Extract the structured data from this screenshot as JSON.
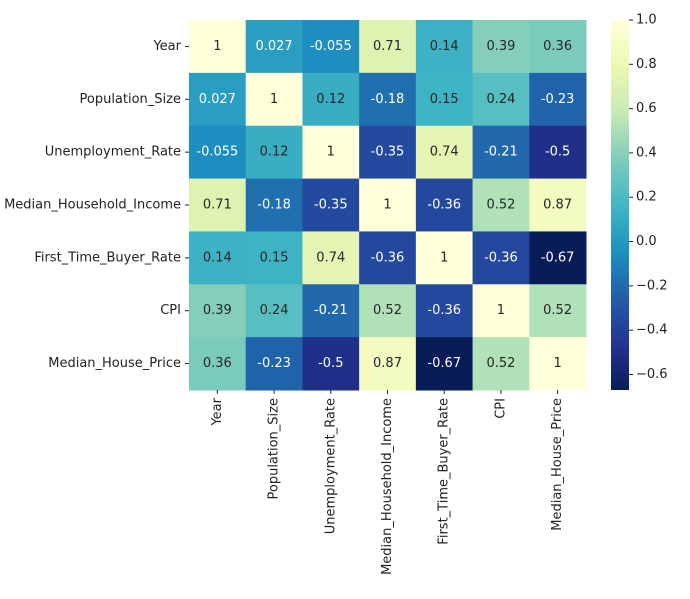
{
  "chart_data": {
    "type": "heatmap",
    "title": "",
    "xlabel": "",
    "ylabel": "",
    "x_labels": [
      "Year",
      "Population_Size",
      "Unemployment_Rate",
      "Median_Household_Income",
      "First_Time_Buyer_Rate",
      "CPI",
      "Median_House_Price"
    ],
    "y_labels": [
      "Year",
      "Population_Size",
      "Unemployment_Rate",
      "Median_Household_Income",
      "First_Time_Buyer_Rate",
      "CPI",
      "Median_House_Price"
    ],
    "values": [
      [
        1,
        0.027,
        -0.055,
        0.71,
        0.14,
        0.39,
        0.36
      ],
      [
        0.027,
        1,
        0.12,
        -0.18,
        0.15,
        0.24,
        -0.23
      ],
      [
        -0.055,
        0.12,
        1,
        -0.35,
        0.74,
        -0.21,
        -0.5
      ],
      [
        0.71,
        -0.18,
        -0.35,
        1,
        -0.36,
        0.52,
        0.87
      ],
      [
        0.14,
        0.15,
        0.74,
        -0.36,
        1,
        -0.36,
        -0.67
      ],
      [
        0.39,
        0.24,
        -0.21,
        0.52,
        -0.36,
        1,
        0.52
      ],
      [
        0.36,
        -0.23,
        -0.5,
        0.87,
        -0.67,
        0.52,
        1
      ]
    ],
    "annotations": [
      [
        "1",
        "0.027",
        "-0.055",
        "0.71",
        "0.14",
        "0.39",
        "0.36"
      ],
      [
        "0.027",
        "1",
        "0.12",
        "-0.18",
        "0.15",
        "0.24",
        "-0.23"
      ],
      [
        "-0.055",
        "0.12",
        "1",
        "-0.35",
        "0.74",
        "-0.21",
        "-0.5"
      ],
      [
        "0.71",
        "-0.18",
        "-0.35",
        "1",
        "-0.36",
        "0.52",
        "0.87"
      ],
      [
        "0.14",
        "0.15",
        "0.74",
        "-0.36",
        "1",
        "-0.36",
        "-0.67"
      ],
      [
        "0.39",
        "0.24",
        "-0.21",
        "0.52",
        "-0.36",
        "1",
        "0.52"
      ],
      [
        "0.36",
        "-0.23",
        "-0.5",
        "0.87",
        "-0.67",
        "0.52",
        "1"
      ]
    ],
    "colormap": "YlGnBu_r",
    "value_range": [
      -0.67,
      1.0
    ],
    "colorbar": {
      "position": "right",
      "ticks": [
        -0.6,
        -0.4,
        -0.2,
        0.0,
        0.2,
        0.4,
        0.6,
        0.8,
        1.0
      ],
      "tick_labels": [
        "−0.6",
        "−0.4",
        "−0.2",
        "0.0",
        "0.2",
        "0.4",
        "0.6",
        "0.8",
        "1.0"
      ]
    },
    "grid": false,
    "legend": "none"
  }
}
